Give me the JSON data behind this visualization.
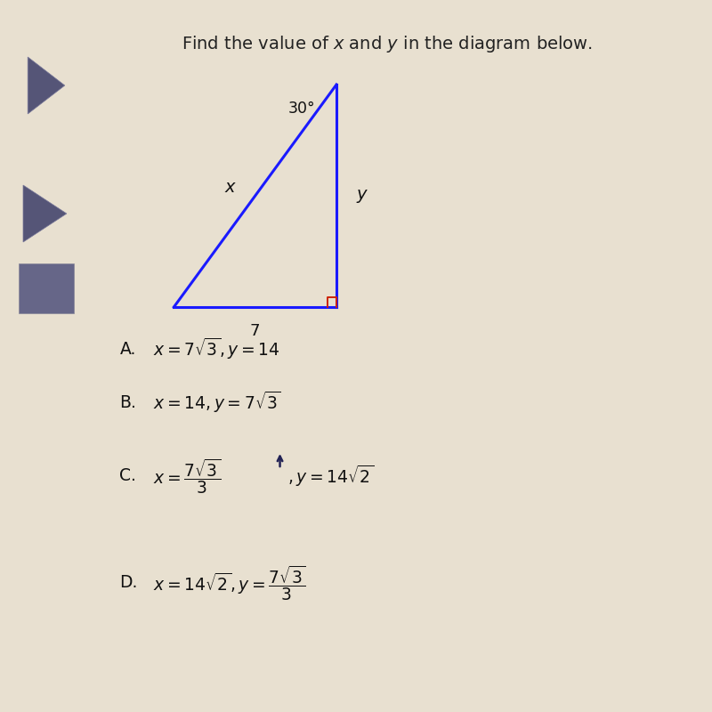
{
  "title": "Find the value of $x$ and $y$ in the diagram below.",
  "title_fontsize": 14,
  "bg_color": "#e8e0d0",
  "sidebar_color": "#2a2e3a",
  "triangle_color": "#1a1aff",
  "triangle_lw": 2.2,
  "right_angle_color": "#cc2200",
  "angle_label": "30°",
  "side_bottom": "7",
  "side_left": "$x$",
  "side_right": "$y$",
  "choice_A": "$x = 7\\sqrt{3}, y = 14$",
  "choice_B": "$x = 14, y = 7\\sqrt{3}$",
  "choice_C_left": "$x = \\dfrac{7\\sqrt{3}}{3}$",
  "choice_C_right": "$, y = 14\\sqrt{2}$",
  "choice_D_left": "$x = 14\\sqrt{2}, y = \\dfrac{7\\sqrt{3}}{3}$"
}
